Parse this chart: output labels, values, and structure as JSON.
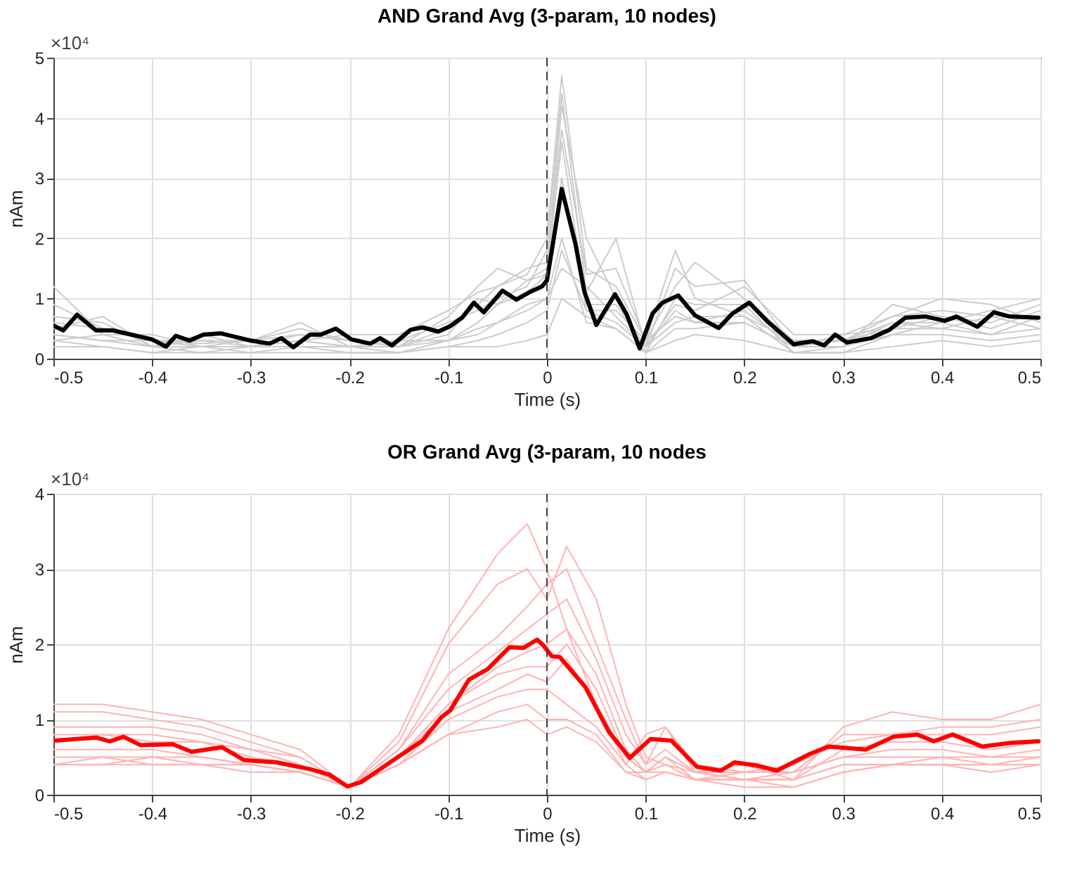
{
  "chart_data": [
    {
      "type": "line",
      "title": "AND Grand Avg (3-param, 10 nodes)",
      "xlabel": "Time (s)",
      "ylabel": "nAm",
      "annotations": [
        "×10⁴"
      ],
      "xlim": [
        -0.5,
        0.5
      ],
      "xticks": [
        -0.5,
        -0.4,
        -0.3,
        -0.2,
        -0.1,
        0,
        0.1,
        0.2,
        0.3,
        0.4,
        0.5
      ],
      "ylim": [
        0,
        5
      ],
      "yticks": [
        0,
        1,
        2,
        3,
        4,
        5
      ],
      "grid": true,
      "ref_lines": [
        {
          "axis": "x",
          "value": 0,
          "color": "#444444",
          "line_style": "dashed"
        }
      ],
      "series": [
        {
          "color": "#cccccc",
          "x": [
            -0.5,
            -0.45,
            -0.4,
            -0.35,
            -0.3,
            -0.25,
            -0.2,
            -0.15,
            -0.1,
            -0.07,
            -0.05,
            -0.02,
            0,
            0.015,
            0.04,
            0.07,
            0.1,
            0.13,
            0.15,
            0.2,
            0.25,
            0.3,
            0.35,
            0.4,
            0.45,
            0.5
          ],
          "values": [
            0.9,
            0.5,
            0.3,
            0.25,
            0.3,
            0.4,
            0.3,
            0.2,
            0.5,
            0.9,
            1.2,
            1.4,
            2.0,
            4.7,
            1.5,
            1.2,
            0.3,
            1.2,
            1.6,
            1.0,
            0.3,
            0.3,
            0.6,
            0.6,
            0.8,
            1.0
          ]
        },
        {
          "color": "#cccccc",
          "x": [
            -0.5,
            -0.45,
            -0.4,
            -0.35,
            -0.3,
            -0.25,
            -0.2,
            -0.15,
            -0.1,
            -0.07,
            -0.05,
            -0.02,
            0,
            0.015,
            0.04,
            0.07,
            0.1,
            0.13,
            0.15,
            0.2,
            0.25,
            0.3,
            0.35,
            0.4,
            0.45,
            0.5
          ],
          "values": [
            0.7,
            0.6,
            0.2,
            0.3,
            0.2,
            0.3,
            0.2,
            0.3,
            0.6,
            0.8,
            1.0,
            1.2,
            1.8,
            4.4,
            1.1,
            2.0,
            0.2,
            1.5,
            1.2,
            1.3,
            0.2,
            0.4,
            0.7,
            0.8,
            0.7,
            0.7
          ]
        },
        {
          "color": "#cccccc",
          "x": [
            -0.5,
            -0.45,
            -0.4,
            -0.35,
            -0.3,
            -0.25,
            -0.2,
            -0.15,
            -0.1,
            -0.07,
            -0.05,
            -0.02,
            0,
            0.015,
            0.04,
            0.07,
            0.1,
            0.13,
            0.15,
            0.2,
            0.25,
            0.3,
            0.35,
            0.4,
            0.45,
            0.5
          ],
          "values": [
            1.2,
            0.4,
            0.4,
            0.2,
            0.3,
            0.5,
            0.3,
            0.2,
            0.4,
            1.0,
            0.9,
            1.3,
            1.5,
            4.2,
            2.0,
            1.0,
            0.1,
            1.0,
            0.9,
            0.9,
            0.1,
            0.2,
            0.9,
            0.7,
            0.6,
            0.9
          ]
        },
        {
          "color": "#cccccc",
          "x": [
            -0.5,
            -0.45,
            -0.4,
            -0.35,
            -0.3,
            -0.25,
            -0.2,
            -0.15,
            -0.1,
            -0.07,
            -0.05,
            -0.02,
            0,
            0.015,
            0.04,
            0.07,
            0.1,
            0.13,
            0.15,
            0.2,
            0.25,
            0.3,
            0.35,
            0.4,
            0.45,
            0.5
          ],
          "values": [
            0.5,
            0.7,
            0.2,
            0.4,
            0.2,
            0.3,
            0.4,
            0.4,
            0.8,
            1.1,
            1.2,
            1.5,
            1.6,
            3.8,
            1.4,
            1.5,
            0.3,
            1.8,
            1.0,
            0.7,
            0.3,
            0.3,
            0.7,
            1.0,
            0.9,
            0.6
          ]
        },
        {
          "color": "#cccccc",
          "x": [
            -0.5,
            -0.45,
            -0.4,
            -0.35,
            -0.3,
            -0.25,
            -0.2,
            -0.15,
            -0.1,
            -0.07,
            -0.05,
            -0.02,
            0,
            0.015,
            0.04,
            0.07,
            0.1,
            0.13,
            0.15,
            0.2,
            0.25,
            0.3,
            0.35,
            0.4,
            0.45,
            0.5
          ],
          "values": [
            0.4,
            0.3,
            0.3,
            0.3,
            0.3,
            0.6,
            0.2,
            0.3,
            0.3,
            0.6,
            0.9,
            1.1,
            1.4,
            3.6,
            0.9,
            0.9,
            0.2,
            0.9,
            0.8,
            1.2,
            0.4,
            0.4,
            0.5,
            0.5,
            0.7,
            0.5
          ]
        },
        {
          "color": "#cccccc",
          "x": [
            -0.5,
            -0.45,
            -0.4,
            -0.35,
            -0.3,
            -0.25,
            -0.2,
            -0.15,
            -0.1,
            -0.07,
            -0.05,
            -0.02,
            0,
            0.015,
            0.04,
            0.07,
            0.1,
            0.13,
            0.15,
            0.2,
            0.25,
            0.3,
            0.35,
            0.4,
            0.45,
            0.5
          ],
          "values": [
            0.6,
            0.5,
            0.3,
            0.2,
            0.2,
            0.4,
            0.3,
            0.2,
            0.7,
            1.2,
            1.5,
            1.3,
            1.4,
            3.0,
            0.8,
            0.8,
            0.3,
            0.7,
            0.6,
            0.8,
            0.2,
            0.3,
            0.5,
            0.7,
            0.5,
            0.8
          ]
        },
        {
          "color": "#cccccc",
          "x": [
            -0.5,
            -0.45,
            -0.4,
            -0.35,
            -0.3,
            -0.25,
            -0.2,
            -0.15,
            -0.1,
            -0.07,
            -0.05,
            -0.02,
            0,
            0.015,
            0.04,
            0.07,
            0.1,
            0.13,
            0.15,
            0.2,
            0.25,
            0.3,
            0.35,
            0.4,
            0.45,
            0.5
          ],
          "values": [
            0.3,
            0.2,
            0.1,
            0.2,
            0.1,
            0.2,
            0.1,
            0.1,
            0.3,
            0.4,
            0.6,
            0.9,
            1.0,
            2.0,
            0.6,
            0.5,
            0.1,
            0.5,
            0.5,
            0.6,
            0.2,
            0.2,
            0.4,
            0.4,
            0.3,
            0.4
          ]
        },
        {
          "color": "#cccccc",
          "x": [
            -0.5,
            -0.45,
            -0.4,
            -0.35,
            -0.3,
            -0.25,
            -0.2,
            -0.15,
            -0.1,
            -0.07,
            -0.05,
            -0.02,
            0,
            0.015,
            0.04,
            0.07,
            0.1,
            0.13,
            0.15,
            0.2,
            0.25,
            0.3,
            0.35,
            0.4,
            0.45,
            0.5
          ],
          "values": [
            0.4,
            0.3,
            0.2,
            0.1,
            0.2,
            0.2,
            0.2,
            0.1,
            0.2,
            0.3,
            0.4,
            0.6,
            0.8,
            1.8,
            0.8,
            0.6,
            0.2,
            0.6,
            0.7,
            0.7,
            0.1,
            0.1,
            0.4,
            0.6,
            0.4,
            0.5
          ]
        },
        {
          "color": "#cccccc",
          "x": [
            -0.5,
            -0.45,
            -0.4,
            -0.35,
            -0.3,
            -0.25,
            -0.2,
            -0.15,
            -0.1,
            -0.07,
            -0.05,
            -0.02,
            0,
            0.015,
            0.04,
            0.07,
            0.1,
            0.13,
            0.15,
            0.2,
            0.25,
            0.3,
            0.35,
            0.4,
            0.45,
            0.5
          ],
          "values": [
            0.2,
            0.2,
            0.1,
            0.1,
            0.1,
            0.1,
            0.1,
            0.1,
            0.2,
            0.2,
            0.2,
            0.3,
            0.4,
            1.0,
            0.7,
            0.5,
            0.1,
            0.3,
            0.4,
            0.3,
            0.1,
            0.1,
            0.2,
            0.3,
            0.2,
            0.3
          ]
        },
        {
          "color": "#cccccc",
          "x": [
            -0.5,
            -0.45,
            -0.4,
            -0.35,
            -0.3,
            -0.25,
            -0.2,
            -0.15,
            -0.1,
            -0.07,
            -0.05,
            -0.02,
            0,
            0.015,
            0.04,
            0.07,
            0.1,
            0.13,
            0.15,
            0.2,
            0.25,
            0.3,
            0.35,
            0.4,
            0.45,
            0.5
          ],
          "values": [
            0.3,
            0.4,
            0.2,
            0.2,
            0.2,
            0.3,
            0.2,
            0.2,
            0.3,
            0.5,
            0.6,
            0.8,
            1.0,
            1.5,
            1.2,
            0.7,
            0.2,
            0.8,
            0.6,
            0.6,
            0.2,
            0.2,
            0.6,
            0.5,
            0.4,
            0.7
          ]
        },
        {
          "color": "#000000",
          "x": [
            -0.5,
            -0.49,
            -0.476,
            -0.457,
            -0.44,
            -0.4,
            -0.386,
            -0.376,
            -0.362,
            -0.348,
            -0.33,
            -0.3,
            -0.281,
            -0.269,
            -0.257,
            -0.24,
            -0.229,
            -0.214,
            -0.198,
            -0.179,
            -0.169,
            -0.157,
            -0.138,
            -0.126,
            -0.11,
            -0.098,
            -0.086,
            -0.074,
            -0.064,
            -0.045,
            -0.031,
            -0.017,
            -0.005,
            0,
            0.015,
            0.029,
            0.038,
            0.05,
            0.069,
            0.081,
            0.094,
            0.107,
            0.117,
            0.133,
            0.15,
            0.174,
            0.188,
            0.205,
            0.224,
            0.25,
            0.269,
            0.281,
            0.292,
            0.304,
            0.328,
            0.347,
            0.363,
            0.384,
            0.403,
            0.415,
            0.436,
            0.453,
            0.469,
            0.498
          ],
          "values": [
            0.55,
            0.47,
            0.73,
            0.47,
            0.47,
            0.32,
            0.2,
            0.38,
            0.3,
            0.4,
            0.42,
            0.3,
            0.25,
            0.34,
            0.19,
            0.4,
            0.4,
            0.5,
            0.32,
            0.25,
            0.34,
            0.22,
            0.48,
            0.52,
            0.45,
            0.54,
            0.68,
            0.93,
            0.77,
            1.13,
            0.98,
            1.11,
            1.2,
            1.3,
            2.82,
            1.9,
            1.11,
            0.56,
            1.07,
            0.73,
            0.17,
            0.75,
            0.93,
            1.05,
            0.72,
            0.51,
            0.75,
            0.93,
            0.61,
            0.24,
            0.29,
            0.22,
            0.4,
            0.27,
            0.34,
            0.48,
            0.68,
            0.7,
            0.63,
            0.7,
            0.53,
            0.77,
            0.7,
            0.68
          ]
        }
      ]
    },
    {
      "type": "line",
      "title": "OR Grand Avg (3-param, 10 nodes",
      "xlabel": "Time (s)",
      "ylabel": "nAm",
      "annotations": [
        "×10⁴"
      ],
      "xlim": [
        -0.5,
        0.5
      ],
      "xticks": [
        -0.5,
        -0.4,
        -0.3,
        -0.2,
        -0.1,
        0,
        0.1,
        0.2,
        0.3,
        0.4,
        0.5
      ],
      "ylim": [
        0,
        4
      ],
      "yticks": [
        0,
        1,
        2,
        3,
        4
      ],
      "grid": true,
      "ref_lines": [
        {
          "axis": "x",
          "value": 0,
          "color": "#444444",
          "line_style": "dashed"
        }
      ],
      "series": [
        {
          "color": "#ffb3b3",
          "x": [
            -0.5,
            -0.45,
            -0.4,
            -0.35,
            -0.3,
            -0.25,
            -0.2,
            -0.15,
            -0.1,
            -0.05,
            -0.02,
            0,
            0.02,
            0.05,
            0.08,
            0.1,
            0.12,
            0.15,
            0.2,
            0.25,
            0.3,
            0.35,
            0.4,
            0.45,
            0.5
          ],
          "values": [
            1.2,
            1.2,
            1.1,
            1.0,
            0.8,
            0.6,
            0.1,
            0.8,
            2.2,
            3.2,
            3.6,
            3.0,
            2.2,
            1.2,
            0.4,
            0.8,
            0.9,
            0.3,
            0.2,
            0.2,
            0.9,
            1.1,
            1.0,
            1.0,
            1.2
          ]
        },
        {
          "color": "#ffb3b3",
          "x": [
            -0.5,
            -0.45,
            -0.4,
            -0.35,
            -0.3,
            -0.25,
            -0.2,
            -0.15,
            -0.1,
            -0.05,
            -0.02,
            0,
            0.02,
            0.05,
            0.08,
            0.1,
            0.12,
            0.15,
            0.2,
            0.25,
            0.3,
            0.35,
            0.4,
            0.45,
            0.5
          ],
          "values": [
            1.1,
            1.1,
            1.0,
            0.9,
            0.7,
            0.5,
            0.1,
            0.7,
            2.0,
            2.8,
            3.0,
            2.6,
            3.3,
            2.6,
            1.2,
            0.5,
            0.4,
            0.2,
            0.3,
            0.3,
            0.8,
            0.8,
            0.9,
            0.9,
            1.0
          ]
        },
        {
          "color": "#ffb3b3",
          "x": [
            -0.5,
            -0.45,
            -0.4,
            -0.35,
            -0.3,
            -0.25,
            -0.2,
            -0.15,
            -0.1,
            -0.05,
            -0.02,
            0,
            0.02,
            0.05,
            0.08,
            0.1,
            0.12,
            0.15,
            0.2,
            0.25,
            0.3,
            0.35,
            0.4,
            0.45,
            0.5
          ],
          "values": [
            0.9,
            0.9,
            0.9,
            0.8,
            0.6,
            0.5,
            0.1,
            0.6,
            1.6,
            2.1,
            2.5,
            2.8,
            3.0,
            2.0,
            1.0,
            0.4,
            0.9,
            0.4,
            0.3,
            0.4,
            0.7,
            0.8,
            0.8,
            0.8,
            0.9
          ]
        },
        {
          "color": "#ffb3b3",
          "x": [
            -0.5,
            -0.45,
            -0.4,
            -0.35,
            -0.3,
            -0.25,
            -0.2,
            -0.15,
            -0.1,
            -0.05,
            -0.02,
            0,
            0.02,
            0.05,
            0.08,
            0.1,
            0.12,
            0.15,
            0.2,
            0.25,
            0.3,
            0.35,
            0.4,
            0.45,
            0.5
          ],
          "values": [
            0.8,
            0.8,
            0.8,
            0.7,
            0.6,
            0.4,
            0.1,
            0.6,
            1.4,
            1.9,
            2.2,
            2.4,
            2.6,
            1.8,
            0.8,
            0.4,
            0.6,
            0.3,
            0.4,
            0.2,
            0.6,
            0.7,
            0.7,
            0.6,
            0.7
          ]
        },
        {
          "color": "#ffb3b3",
          "x": [
            -0.5,
            -0.45,
            -0.4,
            -0.35,
            -0.3,
            -0.25,
            -0.2,
            -0.15,
            -0.1,
            -0.05,
            -0.02,
            0,
            0.02,
            0.05,
            0.08,
            0.1,
            0.12,
            0.15,
            0.2,
            0.25,
            0.3,
            0.35,
            0.4,
            0.45,
            0.5
          ],
          "values": [
            0.7,
            0.8,
            0.7,
            0.7,
            0.5,
            0.4,
            0.1,
            0.5,
            1.2,
            1.7,
            1.9,
            2.0,
            2.2,
            1.6,
            0.6,
            0.3,
            0.5,
            0.2,
            0.2,
            0.3,
            0.5,
            0.6,
            0.6,
            0.5,
            0.6
          ]
        },
        {
          "color": "#ffb3b3",
          "x": [
            -0.5,
            -0.45,
            -0.4,
            -0.35,
            -0.3,
            -0.25,
            -0.2,
            -0.15,
            -0.1,
            -0.05,
            -0.02,
            0,
            0.02,
            0.05,
            0.08,
            0.1,
            0.12,
            0.15,
            0.2,
            0.25,
            0.3,
            0.35,
            0.4,
            0.45,
            0.5
          ],
          "values": [
            0.6,
            0.6,
            0.6,
            0.5,
            0.4,
            0.3,
            0.1,
            0.5,
            1.2,
            1.6,
            1.7,
            1.7,
            2.0,
            1.4,
            0.5,
            0.3,
            0.4,
            0.3,
            0.3,
            0.3,
            0.5,
            0.5,
            0.5,
            0.5,
            0.5
          ]
        },
        {
          "color": "#ffb3b3",
          "x": [
            -0.5,
            -0.45,
            -0.4,
            -0.35,
            -0.3,
            -0.25,
            -0.2,
            -0.15,
            -0.1,
            -0.05,
            -0.02,
            0,
            0.02,
            0.05,
            0.08,
            0.1,
            0.12,
            0.15,
            0.2,
            0.25,
            0.3,
            0.35,
            0.4,
            0.45,
            0.5
          ],
          "values": [
            0.5,
            0.5,
            0.5,
            0.5,
            0.4,
            0.3,
            0.1,
            0.5,
            1.1,
            1.4,
            1.6,
            1.5,
            1.8,
            1.2,
            0.5,
            0.3,
            0.5,
            0.3,
            0.2,
            0.2,
            0.4,
            0.4,
            0.5,
            0.4,
            0.5
          ]
        },
        {
          "color": "#ffb3b3",
          "x": [
            -0.5,
            -0.45,
            -0.4,
            -0.35,
            -0.3,
            -0.25,
            -0.2,
            -0.15,
            -0.1,
            -0.05,
            -0.02,
            0,
            0.02,
            0.05,
            0.08,
            0.1,
            0.12,
            0.15,
            0.2,
            0.25,
            0.3,
            0.35,
            0.4,
            0.45,
            0.5
          ],
          "values": [
            0.4,
            0.4,
            0.5,
            0.4,
            0.4,
            0.3,
            0.1,
            0.4,
            1.0,
            1.3,
            1.4,
            1.4,
            1.2,
            0.9,
            0.4,
            0.2,
            0.3,
            0.2,
            0.2,
            0.1,
            0.3,
            0.4,
            0.4,
            0.4,
            0.4
          ]
        },
        {
          "color": "#ffb3b3",
          "x": [
            -0.5,
            -0.45,
            -0.4,
            -0.35,
            -0.3,
            -0.25,
            -0.2,
            -0.15,
            -0.1,
            -0.05,
            -0.02,
            0,
            0.02,
            0.05,
            0.08,
            0.1,
            0.12,
            0.15,
            0.2,
            0.25,
            0.3,
            0.35,
            0.4,
            0.45,
            0.5
          ],
          "values": [
            0.4,
            0.4,
            0.4,
            0.4,
            0.3,
            0.3,
            0.1,
            0.4,
            0.8,
            1.1,
            1.2,
            1.0,
            1.0,
            0.8,
            0.3,
            0.2,
            0.3,
            0.2,
            0.1,
            0.1,
            0.3,
            0.4,
            0.4,
            0.3,
            0.4
          ]
        },
        {
          "color": "#ffb3b3",
          "x": [
            -0.5,
            -0.45,
            -0.4,
            -0.35,
            -0.3,
            -0.25,
            -0.2,
            -0.15,
            -0.1,
            -0.05,
            -0.02,
            0,
            0.02,
            0.05,
            0.08,
            0.1,
            0.12,
            0.15,
            0.2,
            0.25,
            0.3,
            0.35,
            0.4,
            0.45,
            0.5
          ],
          "values": [
            0.4,
            0.5,
            0.4,
            0.4,
            0.4,
            0.3,
            0.1,
            0.4,
            0.8,
            0.9,
            1.0,
            0.8,
            0.9,
            0.7,
            0.3,
            0.3,
            0.3,
            0.2,
            0.2,
            0.2,
            0.4,
            0.4,
            0.4,
            0.4,
            0.4
          ]
        },
        {
          "color": "#ff0000",
          "x": [
            -0.498,
            -0.457,
            -0.443,
            -0.429,
            -0.412,
            -0.379,
            -0.36,
            -0.329,
            -0.307,
            -0.274,
            -0.24,
            -0.221,
            -0.202,
            -0.188,
            -0.169,
            -0.15,
            -0.126,
            -0.107,
            -0.098,
            -0.079,
            -0.06,
            -0.038,
            -0.024,
            -0.01,
            -0.004,
            0.005,
            0.013,
            0.039,
            0.063,
            0.084,
            0.105,
            0.126,
            0.152,
            0.176,
            0.19,
            0.212,
            0.233,
            0.266,
            0.285,
            0.323,
            0.351,
            0.375,
            0.392,
            0.411,
            0.441,
            0.47,
            0.498
          ],
          "values": [
            0.72,
            0.76,
            0.71,
            0.77,
            0.66,
            0.67,
            0.57,
            0.63,
            0.46,
            0.43,
            0.34,
            0.27,
            0.11,
            0.17,
            0.34,
            0.51,
            0.72,
            1.03,
            1.12,
            1.53,
            1.67,
            1.96,
            1.95,
            2.06,
            1.99,
            1.84,
            1.83,
            1.43,
            0.83,
            0.49,
            0.74,
            0.72,
            0.37,
            0.32,
            0.43,
            0.39,
            0.32,
            0.54,
            0.64,
            0.6,
            0.77,
            0.8,
            0.71,
            0.8,
            0.64,
            0.69,
            0.71
          ]
        }
      ]
    }
  ]
}
